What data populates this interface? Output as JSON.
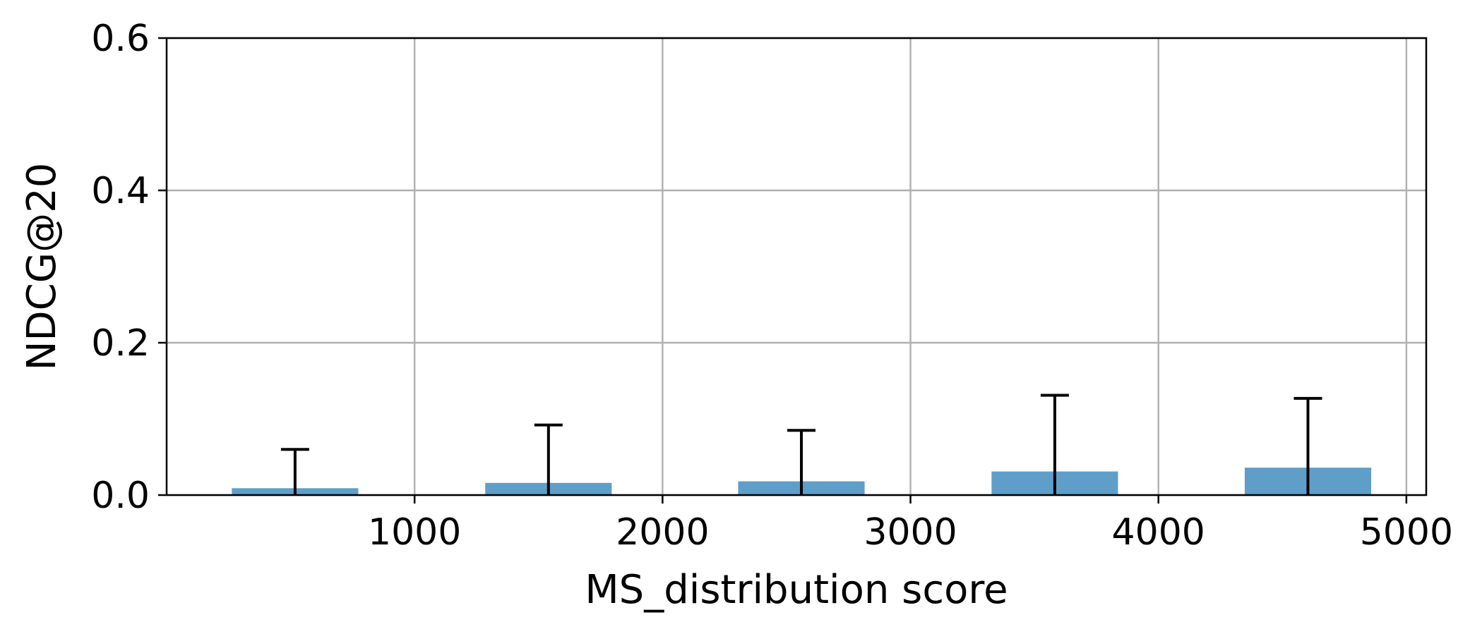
{
  "chart_data": {
    "type": "bar",
    "title": "",
    "xlabel": "MS_distribution score",
    "ylabel": "NDCG@20",
    "xlim": [
      0,
      5080
    ],
    "ylim": [
      0,
      0.6
    ],
    "x_ticks": [
      1000,
      2000,
      3000,
      4000,
      5000
    ],
    "x_tick_labels": [
      "1000",
      "2000",
      "3000",
      "4000",
      "5000"
    ],
    "y_ticks": [
      0.0,
      0.2,
      0.4,
      0.6
    ],
    "y_tick_labels": [
      "0.0",
      "0.2",
      "0.4",
      "0.6"
    ],
    "grid": true,
    "legend": "none",
    "bar_color": "#5f9ec9",
    "errorbar_color": "#000000",
    "bar_width": 510,
    "x": [
      518,
      1540,
      2560,
      3582,
      4603
    ],
    "values": [
      0.009,
      0.016,
      0.018,
      0.031,
      0.036
    ],
    "error_upper": [
      0.06,
      0.092,
      0.085,
      0.131,
      0.127
    ]
  }
}
